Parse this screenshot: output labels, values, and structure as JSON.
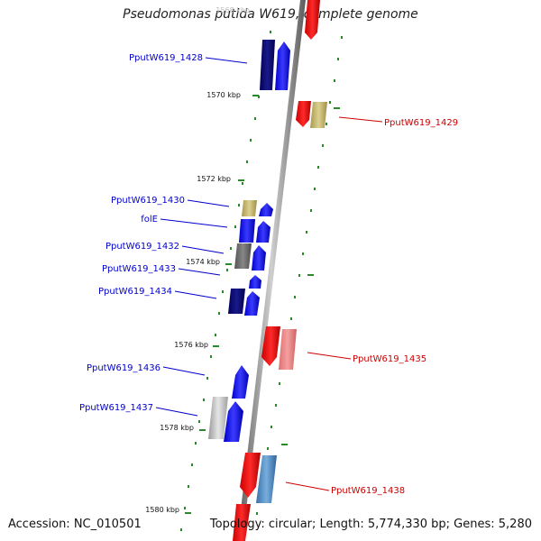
{
  "title": "Pseudomonas putida W619, complete genome",
  "accession": "Accession: NC_010501",
  "topology": "Topology: circular; Length: 5,774,330 bp; Genes: 5,280",
  "colors": {
    "forward_label": "#0000cc",
    "reverse_label": "#cc0000",
    "backbone": "#777777",
    "tick": "#228b22"
  },
  "ruler": [
    {
      "label": "1568 kbp"
    },
    {
      "label": "1570 kbp"
    },
    {
      "label": "1572 kbp"
    },
    {
      "label": "1574 kbp"
    },
    {
      "label": "1576 kbp"
    },
    {
      "label": "1578 kbp"
    },
    {
      "label": "1580 kbp"
    }
  ],
  "gene_labels": [
    {
      "id": "g1428",
      "text": "PputW619_1428",
      "strand": "forward"
    },
    {
      "id": "g1429",
      "text": "PputW619_1429",
      "strand": "reverse"
    },
    {
      "id": "g1430",
      "text": "PputW619_1430",
      "strand": "forward"
    },
    {
      "id": "gfolE",
      "text": "folE",
      "strand": "forward"
    },
    {
      "id": "g1432",
      "text": "PputW619_1432",
      "strand": "forward"
    },
    {
      "id": "g1433",
      "text": "PputW619_1433",
      "strand": "forward"
    },
    {
      "id": "g1434",
      "text": "PputW619_1434",
      "strand": "forward"
    },
    {
      "id": "g1435",
      "text": "PputW619_1435",
      "strand": "reverse"
    },
    {
      "id": "g1436",
      "text": "PputW619_1436",
      "strand": "forward"
    },
    {
      "id": "g1437",
      "text": "PputW619_1437",
      "strand": "forward"
    },
    {
      "id": "g1438",
      "text": "PputW619_1438",
      "strand": "reverse"
    }
  ]
}
